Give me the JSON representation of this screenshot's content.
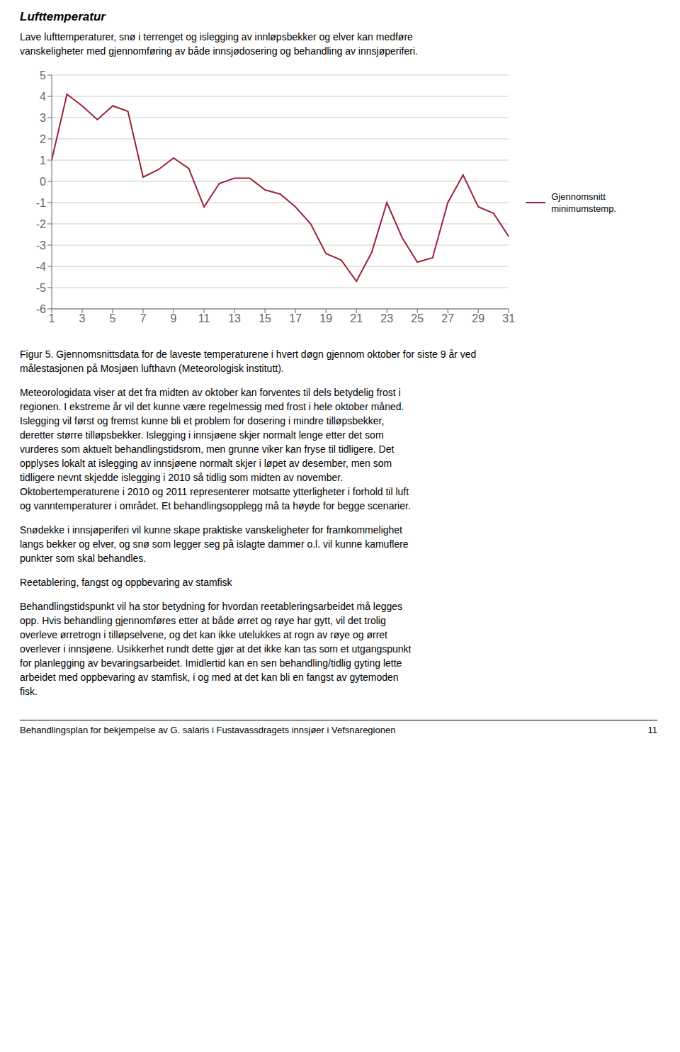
{
  "chart_data": {
    "type": "line",
    "title": "Lufttemperatur",
    "subtitle": "Lave lufttemperaturer, snø i terrenget og islegging av innløpsbekker og elver kan medføre\nvanskeligheter med gjennomføring av både innsjødosering og behandling av innsjøperiferi.",
    "x": [
      1,
      2,
      3,
      4,
      5,
      6,
      7,
      8,
      9,
      10,
      11,
      12,
      13,
      14,
      15,
      16,
      17,
      18,
      19,
      20,
      21,
      22,
      23,
      24,
      25,
      26,
      27,
      28,
      29,
      30,
      31
    ],
    "series": [
      {
        "name": "Gjennomsnitt\nminimumstemp.",
        "color": "#9B2335",
        "values": [
          1.0,
          4.1,
          3.55,
          2.9,
          3.55,
          3.3,
          0.2,
          0.55,
          1.1,
          0.6,
          -1.2,
          -0.1,
          0.15,
          0.15,
          -0.4,
          -0.6,
          -1.2,
          -2.0,
          -3.4,
          -3.7,
          -4.7,
          -3.35,
          -1.0,
          -2.65,
          -3.8,
          -3.6,
          -1.0,
          0.3,
          -1.2,
          -1.5,
          -2.6
        ]
      }
    ],
    "xlim": [
      1,
      31
    ],
    "xticks": [
      1,
      3,
      5,
      7,
      9,
      11,
      13,
      15,
      17,
      19,
      21,
      23,
      25,
      27,
      29,
      31
    ],
    "ylim": [
      -6,
      5
    ],
    "yticks": [
      -6,
      -5,
      -4,
      -3,
      -2,
      -1,
      0,
      1,
      2,
      3,
      4,
      5
    ],
    "grid": true,
    "legend": "right",
    "annotations": [
      "Figur 5.  Gjennomsnittsdata for de laveste temperaturene i hvert døgn gjennom oktober for siste 9 år ved\nmålestasjonen på Mosjøen lufthavn (Meteorologisk institutt).",
      "Meteorologidata viser at det fra midten av oktober kan forventes til dels betydelig frost i\nregionen. I ekstreme år vil det kunne være regelmessig med frost i hele oktober måned.\nIslegging vil først og fremst kunne bli et problem for dosering i mindre tilløpsbekker,\nderetter større tilløpsbekker. Islegging i innsjøene skjer normalt lenge etter det som\nvurderes som aktuelt behandlingstidsrom, men grunne viker kan fryse til tidligere. Det\nopplyses lokalt at islegging av innsjøene normalt skjer i løpet av desember, men som\ntidligere nevnt skjedde islegging i 2010 så tidlig som midten av november.\nOktobertemperaturene i 2010 og 2011 representerer motsatte ytterligheter i forhold til luft\nog vanntemperaturer i området. Et behandlingsopplegg må ta høyde for begge scenarier.",
      "Snødekke i innsjøperiferi vil kunne skape praktiske vanskeligheter for framkommelighet\nlangs bekker og elver, og snø som legger seg på islagte dammer o.l. vil kunne kamuflere\npunkter som skal behandles.",
      "Reetablering, fangst og oppbevaring av stamfisk",
      "Behandlingstidspunkt vil ha stor betydning for hvordan reetableringsarbeidet må legges\nopp. Hvis behandling gjennomføres etter at både ørret og røye har gytt, vil det trolig\noverleve ørretrogn i tilløpselvene, og det kan ikke utelukkes at rogn av røye og ørret\noverlever i innsjøene. Usikkerhet rundt dette gjør at det ikke kan tas som et utgangspunkt\nfor planlegging av bevaringsarbeidet. Imidlertid kan en sen behandling/tidlig gyting lette\narbeidet med oppbevaring av stamfisk, i og med at det kan bli en fangst av gytemoden\nfisk.",
      "Behandlingsplan for bekjempelse av G. salaris i Fustavassdragets innsjøer i Vefsnaregionen",
      "11"
    ]
  }
}
